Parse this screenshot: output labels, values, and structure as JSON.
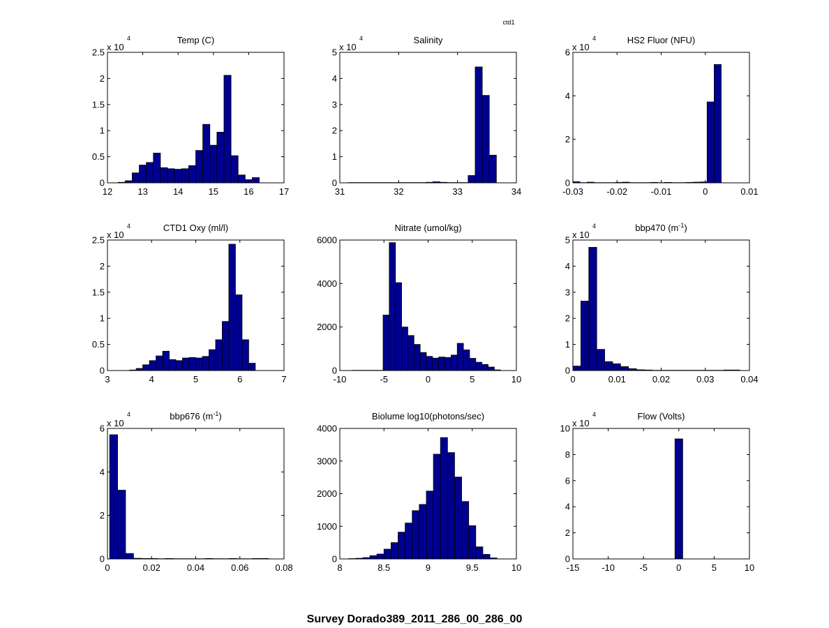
{
  "figure": {
    "title": "Survey Dorado389_2011_286_00_286_00",
    "corner_label": "ctd1",
    "colors": {
      "bar_fill": "#00008f",
      "bar_edge": "#000000",
      "axes": "#000000",
      "background": "#ffffff"
    }
  },
  "chart_data": [
    {
      "type": "bar",
      "title": "Temp (C)",
      "multiplier": {
        "base": "x 10",
        "exp": "4"
      },
      "xlim": [
        12,
        17
      ],
      "ylim": [
        0,
        2.5
      ],
      "xticks": [
        "12",
        "13",
        "14",
        "15",
        "16",
        "17"
      ],
      "yticks": [
        "0",
        "0.5",
        "1",
        "1.5",
        "2",
        "2.5"
      ],
      "bin_width": 0.2,
      "bin_starts": [
        12.3,
        12.5,
        12.7,
        12.9,
        13.1,
        13.3,
        13.5,
        13.7,
        13.9,
        14.1,
        14.3,
        14.5,
        14.7,
        14.9,
        15.1,
        15.3,
        15.5,
        15.7,
        15.9,
        16.1
      ],
      "values": [
        0.01,
        0.04,
        0.19,
        0.34,
        0.39,
        0.57,
        0.29,
        0.27,
        0.26,
        0.27,
        0.33,
        0.62,
        1.12,
        0.72,
        0.97,
        2.06,
        0.52,
        0.15,
        0.06,
        0.1
      ]
    },
    {
      "type": "bar",
      "title": "Salinity",
      "multiplier": {
        "base": "x 10",
        "exp": "4"
      },
      "xlim": [
        31,
        34
      ],
      "ylim": [
        0,
        5
      ],
      "xticks": [
        "31",
        "32",
        "33",
        "34"
      ],
      "yticks": [
        "0",
        "1",
        "2",
        "3",
        "4",
        "5"
      ],
      "bin_width": 0.12,
      "bin_starts": [
        31.14,
        31.26,
        31.38,
        31.5,
        31.62,
        31.74,
        31.86,
        31.98,
        32.1,
        32.22,
        32.34,
        32.46,
        32.58,
        32.7,
        32.82,
        32.94,
        33.06,
        33.18,
        33.3,
        33.42,
        33.54
      ],
      "values": [
        0.01,
        0.01,
        0.01,
        0.01,
        0.01,
        0.01,
        0.01,
        0.01,
        0.01,
        0.01,
        0.01,
        0.02,
        0.04,
        0.02,
        0.01,
        0.01,
        0.01,
        0.28,
        4.44,
        3.35,
        1.06
      ]
    },
    {
      "type": "bar",
      "title": "HS2 Fluor (NFU)",
      "multiplier": {
        "base": "x 10",
        "exp": "4"
      },
      "xlim": [
        -0.03,
        0.01
      ],
      "ylim": [
        0,
        6
      ],
      "xticks": [
        "-0.03",
        "-0.02",
        "-0.01",
        "0",
        "0.01"
      ],
      "yticks": [
        "0",
        "2",
        "4",
        "6"
      ],
      "bin_width": 0.0016,
      "bin_starts": [
        -0.03,
        -0.0284,
        -0.0268,
        -0.0252,
        -0.0236,
        -0.022,
        -0.0204,
        -0.0188,
        -0.0172,
        -0.0156,
        -0.014,
        -0.0124,
        -0.0108,
        -0.0092,
        -0.0076,
        -0.006,
        -0.0044,
        -0.0028,
        -0.0012,
        0.0004,
        0.002
      ],
      "values": [
        0.05,
        0.01,
        0.03,
        0.01,
        0.01,
        0.01,
        0.02,
        0.03,
        0.01,
        0.01,
        0.01,
        0.02,
        0.01,
        0.02,
        0.01,
        0.01,
        0.02,
        0.03,
        0.04,
        3.72,
        5.44
      ]
    },
    {
      "type": "bar",
      "title": "CTD1 Oxy (ml/l)",
      "multiplier": {
        "base": "x 10",
        "exp": "4"
      },
      "xlim": [
        3,
        7
      ],
      "ylim": [
        0,
        2.5
      ],
      "xticks": [
        "3",
        "4",
        "5",
        "6",
        "7"
      ],
      "yticks": [
        "0",
        "0.5",
        "1",
        "1.5",
        "2",
        "2.5"
      ],
      "bin_width": 0.15,
      "bin_starts": [
        3.5,
        3.65,
        3.8,
        3.95,
        4.1,
        4.25,
        4.4,
        4.55,
        4.7,
        4.85,
        5,
        5.15,
        5.3,
        5.45,
        5.6,
        5.75,
        5.9,
        6.05,
        6.2
      ],
      "values": [
        0.01,
        0.04,
        0.11,
        0.19,
        0.28,
        0.37,
        0.21,
        0.19,
        0.24,
        0.25,
        0.24,
        0.27,
        0.4,
        0.59,
        0.94,
        2.42,
        1.45,
        0.59,
        0.14
      ]
    },
    {
      "type": "bar",
      "title": "Nitrate (umol/kg)",
      "multiplier": null,
      "xlim": [
        -10,
        10
      ],
      "ylim": [
        0,
        6000
      ],
      "xticks": [
        "-10",
        "-5",
        "0",
        "5",
        "10"
      ],
      "yticks": [
        "0",
        "2000",
        "4000",
        "6000"
      ],
      "bin_width": 0.7,
      "bin_starts": [
        -8.6,
        -7.9,
        -7.2,
        -6.5,
        -5.8,
        -5.1,
        -4.4,
        -3.7,
        -3.0,
        -2.3,
        -1.6,
        -0.9,
        -0.2,
        0.5,
        1.2,
        1.9,
        2.6,
        3.3,
        4.0,
        4.7,
        5.4,
        6.1,
        6.8,
        7.5
      ],
      "values": [
        10,
        10,
        10,
        10,
        10,
        2550,
        5880,
        4040,
        2000,
        1610,
        1200,
        830,
        650,
        570,
        620,
        600,
        710,
        1250,
        950,
        560,
        380,
        280,
        160,
        30
      ]
    },
    {
      "type": "bar",
      "title": "bbp470 (m",
      "title_sup": "-1",
      "title_suffix": ")",
      "multiplier": {
        "base": "x 10",
        "exp": "4"
      },
      "xlim": [
        0,
        0.04
      ],
      "ylim": [
        0,
        5
      ],
      "xticks": [
        "0",
        "0.01",
        "0.02",
        "0.03",
        "0.04"
      ],
      "yticks": [
        "0",
        "1",
        "2",
        "3",
        "4",
        "5"
      ],
      "bin_width": 0.0018,
      "bin_starts": [
        0,
        0.0018,
        0.0036,
        0.0054,
        0.0072,
        0.009,
        0.0108,
        0.0126,
        0.0144,
        0.0162,
        0.018,
        0.0198,
        0.0216,
        0.0234,
        0.0252,
        0.027,
        0.0288,
        0.0306,
        0.0324,
        0.0342,
        0.036
      ],
      "values": [
        0.17,
        2.66,
        4.72,
        0.81,
        0.34,
        0.26,
        0.15,
        0.07,
        0.03,
        0.02,
        0.01,
        0.01,
        0.01,
        0.01,
        0.01,
        0.01,
        0.01,
        0.01,
        0.01,
        0.02,
        0.02
      ]
    },
    {
      "type": "bar",
      "title": "bbp676 (m",
      "title_sup": "-1",
      "title_suffix": ")",
      "multiplier": {
        "base": "x 10",
        "exp": "4"
      },
      "xlim": [
        0,
        0.08
      ],
      "ylim": [
        0,
        6
      ],
      "xticks": [
        "0",
        "0.02",
        "0.04",
        "0.06",
        "0.08"
      ],
      "yticks": [
        "0",
        "2",
        "4",
        "6"
      ],
      "bin_width": 0.0036,
      "bin_starts": [
        0.001,
        0.0046,
        0.0082,
        0.0118,
        0.0154,
        0.019,
        0.0226,
        0.0262,
        0.0298,
        0.0334,
        0.037,
        0.0406,
        0.0442,
        0.0478,
        0.0514,
        0.055,
        0.0586,
        0.0622,
        0.0658,
        0.0694
      ],
      "values": [
        5.71,
        3.16,
        0.25,
        0.03,
        0.02,
        0.02,
        0.01,
        0.02,
        0.01,
        0.01,
        0.01,
        0.01,
        0.02,
        0.01,
        0.01,
        0.02,
        0.01,
        0.01,
        0.02,
        0.02
      ]
    },
    {
      "type": "bar",
      "title": "Biolume log10(photons/sec)",
      "multiplier": null,
      "xlim": [
        8,
        10
      ],
      "ylim": [
        0,
        4000
      ],
      "xticks": [
        "8",
        "8.5",
        "9",
        "9.5",
        "10"
      ],
      "yticks": [
        "0",
        "1000",
        "2000",
        "3000",
        "4000"
      ],
      "bin_width": 0.08,
      "bin_starts": [
        8.1,
        8.18,
        8.26,
        8.34,
        8.42,
        8.5,
        8.58,
        8.66,
        8.74,
        8.82,
        8.9,
        8.98,
        9.06,
        9.14,
        9.22,
        9.3,
        9.38,
        9.46,
        9.54,
        9.62,
        9.7
      ],
      "values": [
        10,
        20,
        40,
        100,
        150,
        300,
        500,
        820,
        1100,
        1480,
        1670,
        2080,
        3210,
        3720,
        3260,
        2510,
        1760,
        1020,
        370,
        140,
        30
      ]
    },
    {
      "type": "bar",
      "title": "Flow (Volts)",
      "multiplier": {
        "base": "x 10",
        "exp": "4"
      },
      "xlim": [
        -15,
        10
      ],
      "ylim": [
        0,
        10
      ],
      "xticks": [
        "-15",
        "-10",
        "-5",
        "0",
        "5",
        "10"
      ],
      "yticks": [
        "0",
        "2",
        "4",
        "6",
        "8",
        "10"
      ],
      "bin_width": 1.1,
      "bin_starts": [
        -0.55
      ],
      "values": [
        9.2
      ]
    }
  ]
}
